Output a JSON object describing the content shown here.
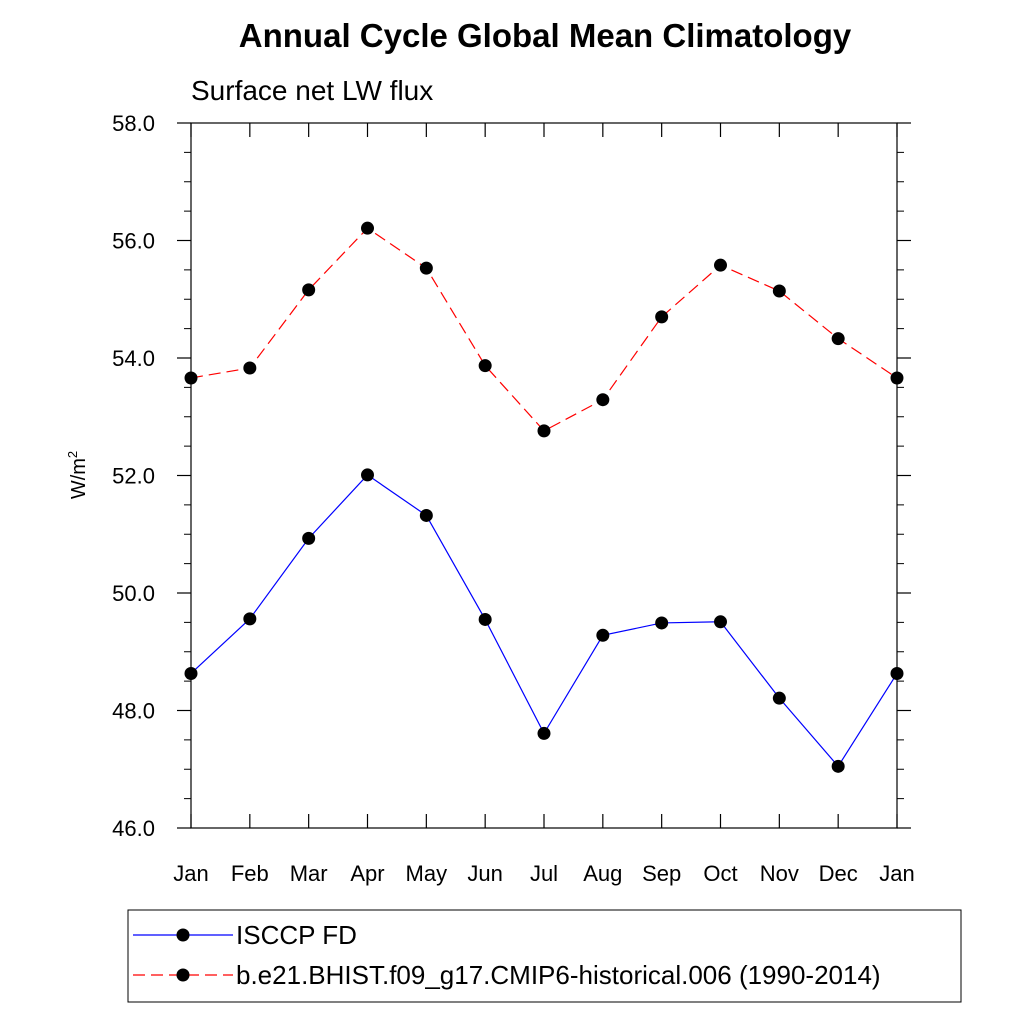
{
  "chart_data": {
    "type": "line",
    "title": "Annual Cycle Global Mean Climatology",
    "subtitle": "Surface net LW flux",
    "ylabel": "W/m",
    "ylabel_superscript": "2",
    "ylim": [
      46.0,
      58.0
    ],
    "yticks": [
      "46.0",
      "48.0",
      "50.0",
      "52.0",
      "54.0",
      "56.0",
      "58.0"
    ],
    "categories": [
      "Jan",
      "Feb",
      "Mar",
      "Apr",
      "May",
      "Jun",
      "Jul",
      "Aug",
      "Sep",
      "Oct",
      "Nov",
      "Dec",
      "Jan"
    ],
    "grid": false,
    "legend_position": "bottom",
    "series": [
      {
        "name": "ISCCP FD",
        "color": "#0000ff",
        "dash": "solid",
        "values": [
          48.63,
          49.56,
          50.93,
          52.01,
          51.32,
          49.55,
          47.61,
          49.28,
          49.49,
          49.51,
          48.21,
          47.05,
          48.63
        ]
      },
      {
        "name": "b.e21.BHIST.f09_g17.CMIP6-historical.006 (1990-2014)",
        "color": "#ff0000",
        "dash": "dashed",
        "values": [
          53.66,
          53.83,
          55.16,
          56.21,
          55.53,
          53.87,
          52.76,
          53.29,
          54.7,
          55.58,
          55.14,
          54.33,
          53.66
        ]
      }
    ]
  }
}
